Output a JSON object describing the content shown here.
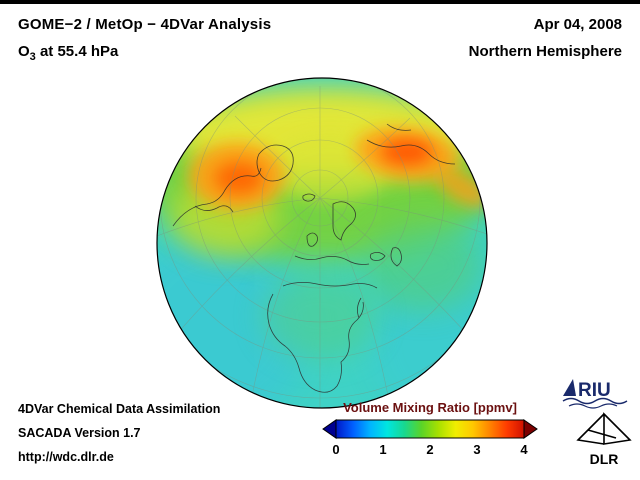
{
  "header": {
    "title": "GOME−2 / MetOp − 4DVar Analysis",
    "subtitle_prefix": "O",
    "subtitle_sub": "3",
    "subtitle_rest": " at 55.4 hPa",
    "date": "Apr 04, 2008",
    "region": "Northern Hemisphere"
  },
  "footer": {
    "line1": "4DVar Chemical Data Assimilation",
    "line2": "SACADA Version 1.7",
    "line3": "http://wdc.dlr.de"
  },
  "colorbar": {
    "title": "Volume Mixing Ratio [ppmv]",
    "title_color": "#6b1010",
    "ticks": [
      "0",
      "1",
      "2",
      "3",
      "4"
    ],
    "value_range": [
      0,
      4
    ],
    "colors": [
      "#0018c8",
      "#0060ff",
      "#00b4ff",
      "#00e6e0",
      "#18d890",
      "#5ad428",
      "#a8e000",
      "#f0ee00",
      "#ffc800",
      "#ff8400",
      "#ff3c00",
      "#d01000"
    ],
    "tip_left_color": "#000090",
    "tip_right_color": "#7c0000"
  },
  "map": {
    "base_color": "#3fd2c6"
  },
  "logos": {
    "riu_text": "RIU",
    "dlr_text": "DLR",
    "riu_color": "#1a2a6b"
  }
}
